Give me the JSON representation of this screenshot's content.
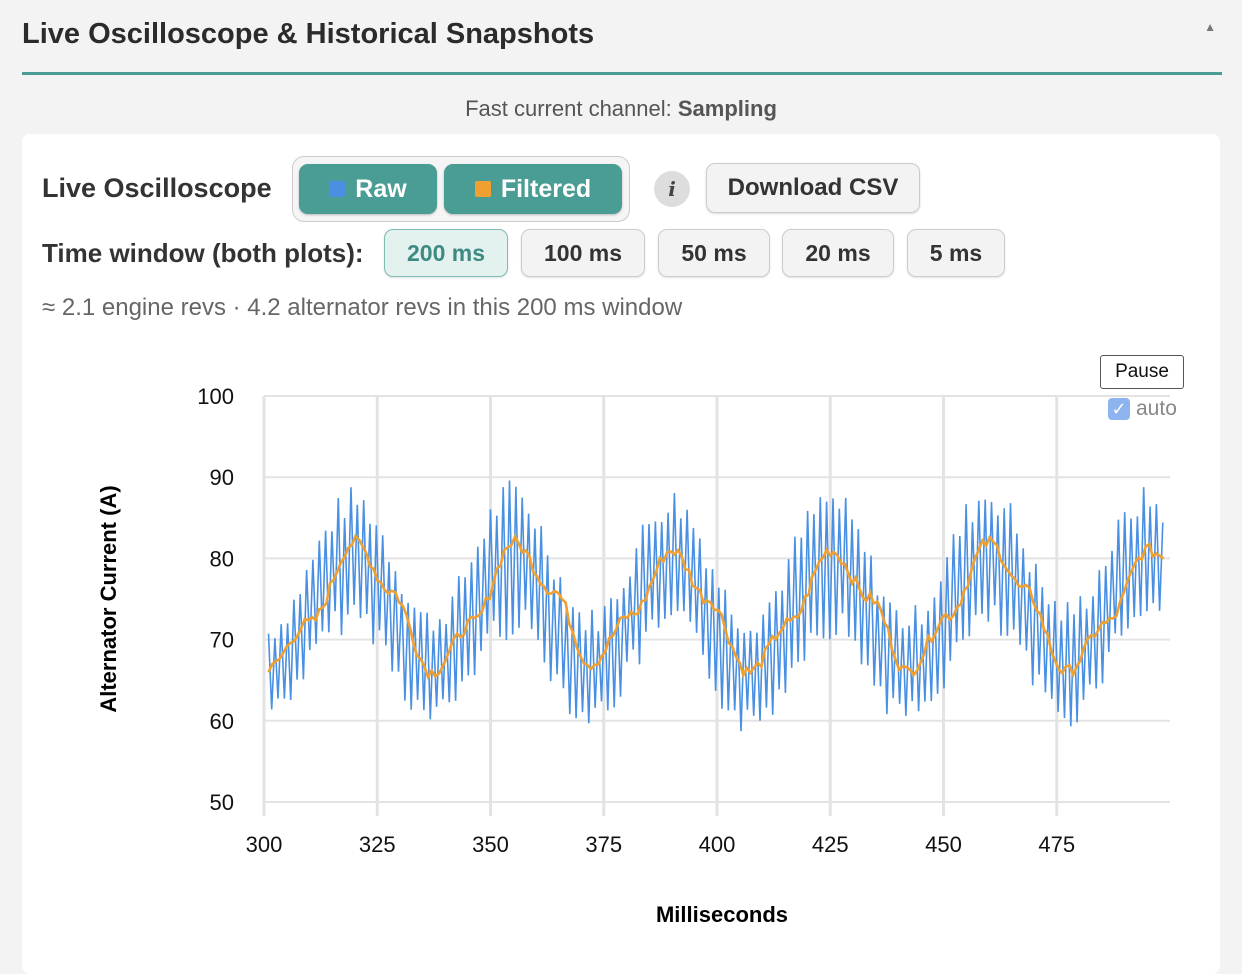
{
  "header": {
    "title": "Live Oscilloscope & Historical Snapshots",
    "collapse_icon": "▲"
  },
  "status": {
    "channel_label": "Fast current channel: ",
    "channel_state": "Sampling"
  },
  "controls": {
    "osc_label": "Live Oscilloscope",
    "toggles": [
      {
        "label": "Raw",
        "color": "#4a90e2",
        "active": true
      },
      {
        "label": "Filtered",
        "color": "#f0a030",
        "active": true
      }
    ],
    "info_icon": "i",
    "download_label": "Download CSV",
    "time_window_label": "Time window (both plots):",
    "time_windows": [
      {
        "label": "200 ms",
        "active": true
      },
      {
        "label": "100 ms",
        "active": false
      },
      {
        "label": "50 ms",
        "active": false
      },
      {
        "label": "20 ms",
        "active": false
      },
      {
        "label": "5 ms",
        "active": false
      }
    ],
    "revs_text": "≈ 2.1 engine revs · 4.2 alternator revs in this 200 ms window",
    "pause_label": "Pause",
    "auto_label": "auto",
    "auto_checked": true
  },
  "colors": {
    "accent": "#4a9d95",
    "raw": "#4a90e2",
    "filtered": "#f0a030"
  },
  "chart_data": {
    "type": "line",
    "xlabel": "Milliseconds",
    "ylabel": "Alternator Current (A)",
    "xlim": [
      300,
      500
    ],
    "ylim": [
      50,
      100
    ],
    "x_ticks": [
      300,
      325,
      350,
      375,
      400,
      425,
      450,
      475
    ],
    "y_ticks": [
      50,
      60,
      70,
      80,
      90,
      100
    ],
    "grid": true,
    "series": [
      {
        "name": "Raw",
        "color": "#4a90e2",
        "description_free": true,
        "x": [
          300,
          320,
          337,
          355,
          372,
          390,
          407,
          425,
          442,
          460,
          477,
          495,
          500
        ],
        "envelope_min": [
          60,
          71,
          59,
          70,
          59,
          70,
          58,
          70,
          59,
          70,
          59,
          72,
          72
        ],
        "envelope_max": [
          72,
          89,
          74,
          90,
          74,
          89,
          74,
          89,
          74,
          90,
          75,
          89,
          87
        ]
      },
      {
        "name": "Filtered",
        "color": "#f0a030",
        "x": [
          300,
          310,
          320,
          328,
          337,
          346,
          355,
          364,
          372,
          381,
          390,
          398,
          407,
          416,
          425,
          434,
          442,
          451,
          460,
          468,
          477,
          486,
          495,
          500
        ],
        "values": [
          66,
          72,
          82,
          76,
          66,
          72,
          82,
          76,
          67,
          73,
          81,
          75,
          66,
          72,
          81,
          75,
          66,
          73,
          82,
          76,
          66,
          72,
          81,
          80
        ]
      }
    ]
  }
}
